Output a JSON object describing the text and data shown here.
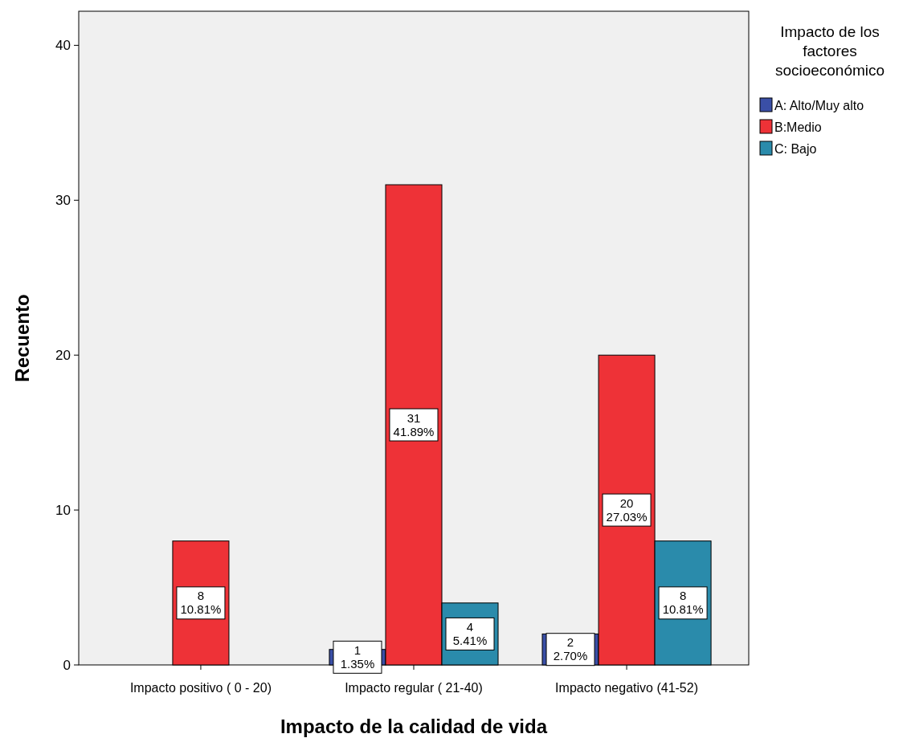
{
  "chart_data": {
    "type": "bar",
    "xlabel": "Impacto de la calidad de vida",
    "ylabel": "Recuento",
    "legend_title": "Impacto de los factores socioeconómico",
    "categories": [
      "Impacto positivo ( 0 - 20)",
      "Impacto regular ( 21-40)",
      "Impacto negativo (41-52)"
    ],
    "series": [
      {
        "name": "A: Alto/Muy alto",
        "color": "#3a4fa6",
        "values": [
          null,
          1,
          2
        ],
        "value_labels": [
          null,
          "1\n1.35%",
          "2\n2.70%"
        ]
      },
      {
        "name": "B:Medio",
        "color": "#ee3237",
        "values": [
          8,
          31,
          20
        ],
        "value_labels": [
          "8\n10.81%",
          "31\n41.89%",
          "20\n27.03%"
        ]
      },
      {
        "name": "C: Bajo",
        "color": "#2a8bab",
        "values": [
          null,
          4,
          8
        ],
        "value_labels": [
          null,
          "4\n5.41%",
          "8\n10.81%"
        ]
      }
    ],
    "ylim": [
      0,
      42.2
    ],
    "yticks": [
      0,
      10,
      20,
      30,
      40
    ],
    "grid": false,
    "legend": "top right"
  }
}
